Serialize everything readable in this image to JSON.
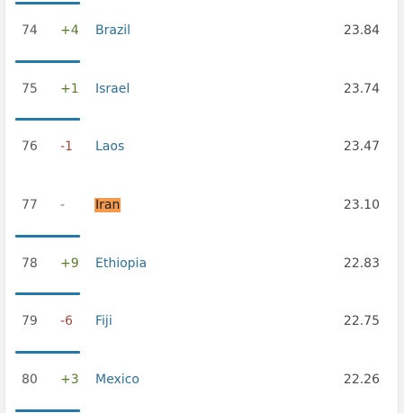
{
  "rows": [
    {
      "rank": "74",
      "change": "+4",
      "country": "Brazil",
      "score": "23.84"
    },
    {
      "rank": "75",
      "change": "+1",
      "country": "Israel",
      "score": "23.74"
    },
    {
      "rank": "76",
      "change": "-1",
      "country": "Laos",
      "score": "23.47"
    },
    {
      "rank": "77",
      "change": "-",
      "country": "Iran",
      "score": "23.10"
    },
    {
      "rank": "78",
      "change": "+9",
      "country": "Ethiopia",
      "score": "22.83"
    },
    {
      "rank": "79",
      "change": "-6",
      "country": "Fiji",
      "score": "22.75"
    },
    {
      "rank": "80",
      "change": "+3",
      "country": "Mexico",
      "score": "22.26"
    }
  ],
  "colors": {
    "accent_bar": "#2579a8",
    "country_link": "#2f6f94",
    "change_up": "#5a7a2e",
    "change_down": "#a0463f",
    "highlight": "#f39a4c"
  }
}
